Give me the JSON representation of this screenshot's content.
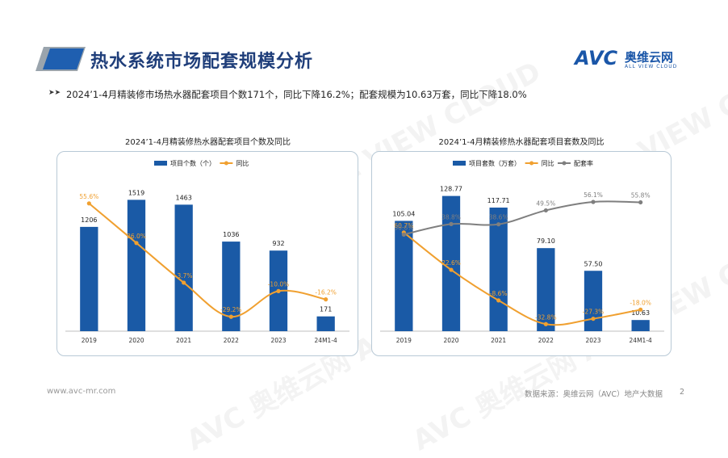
{
  "page": {
    "title": "热水系统市场配套规模分析",
    "summary": "2024’1-4月精装修市场热水器配套项目个数171个，同比下降16.2%；配套规模为10.63万套，同比下降18.0%",
    "logo_main": "AVC",
    "logo_cn": "奥维云网",
    "logo_en": "ALL VIEW CLOUD",
    "footer_url": "www.avc-mr.com",
    "footer_source": "数据来源：奥维云网（AVC）地产大数据",
    "page_number": "2",
    "watermark": "AVC 奥维云网 ALL VIEW CLOUD",
    "colors": {
      "bar": "#1a5aa6",
      "line_orange": "#f0a030",
      "line_gray": "#7f7f7f",
      "title_blue": "#1f3e7a",
      "panel_border": "#b8c9d6"
    }
  },
  "chart_data": [
    {
      "type": "bar",
      "title": "2024’1-4月精装修热水器配套项目个数及同比",
      "categories": [
        "2019",
        "2020",
        "2021",
        "2022",
        "2023",
        "24M1-4"
      ],
      "series": [
        {
          "name": "项目个数（个）",
          "type": "bar",
          "values": [
            1206,
            1519,
            1463,
            1036,
            932,
            171
          ],
          "labels": [
            "1206",
            "1519",
            "1463",
            "1036",
            "932",
            "171"
          ]
        },
        {
          "name": "同比",
          "type": "line",
          "values": [
            55.6,
            26.0,
            -3.7,
            -29.2,
            -10.0,
            -16.2
          ],
          "labels": [
            "55.6%",
            "26.0%",
            "-3.7%",
            "-29.2%",
            "-10.0%",
            "-16.2%"
          ]
        }
      ],
      "ylim_bar": [
        0,
        1700
      ],
      "ylim_line": [
        -40,
        70
      ]
    },
    {
      "type": "bar",
      "title": "2024’1-4月精装修热水器配套项目套数及同比",
      "categories": [
        "2019",
        "2020",
        "2021",
        "2022",
        "2023",
        "24M1-4"
      ],
      "series": [
        {
          "name": "项目套数（万套）",
          "type": "bar",
          "values": [
            105.04,
            128.77,
            117.71,
            79.1,
            57.5,
            10.63
          ],
          "labels": [
            "105.04",
            "128.77",
            "117.71",
            "79.10",
            "57.50",
            "10.63"
          ]
        },
        {
          "name": "同比",
          "type": "line",
          "values": [
            60.7,
            22.6,
            -8.6,
            -32.8,
            -27.3,
            -18.0
          ],
          "labels": [
            "60.7%",
            "22.6%",
            "-8.6%",
            "-32.8%",
            "-27.3%",
            "-18.0%"
          ]
        },
        {
          "name": "配套率",
          "type": "line",
          "values": [
            30.6,
            38.8,
            38.6,
            49.5,
            56.1,
            55.8
          ],
          "labels": [
            "30.6%",
            "38.8%",
            "38.6%",
            "49.5%",
            "56.1%",
            "55.8%"
          ]
        }
      ],
      "ylim_bar": [
        0,
        140
      ],
      "ylim_line": [
        -40,
        110
      ],
      "ylim_rate": [
        -45,
        70
      ]
    }
  ]
}
